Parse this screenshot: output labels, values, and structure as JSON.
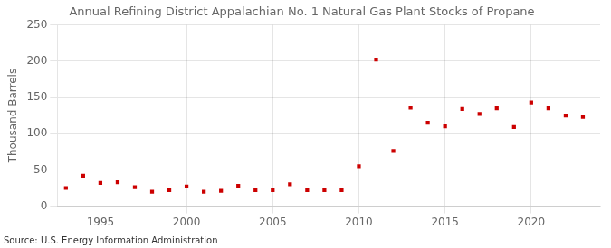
{
  "chart_data": {
    "type": "scatter",
    "title": "Annual Refining District Appalachian No. 1 Natural Gas Plant Stocks of Propane",
    "ylabel": "Thousand Barrels",
    "annotations": [
      "Source: U.S. Energy Information Administration"
    ],
    "x": [
      1993,
      1994,
      1995,
      1996,
      1997,
      1998,
      1999,
      2000,
      2001,
      2002,
      2003,
      2004,
      2005,
      2006,
      2007,
      2008,
      2009,
      2010,
      2011,
      2012,
      2013,
      2014,
      2015,
      2016,
      2017,
      2018,
      2019,
      2020,
      2021,
      2022,
      2023
    ],
    "values": [
      25,
      42,
      32,
      33,
      26,
      20,
      22,
      27,
      20,
      21,
      28,
      22,
      22,
      30,
      22,
      22,
      22,
      55,
      202,
      76,
      136,
      115,
      110,
      134,
      127,
      135,
      109,
      143,
      135,
      125,
      123
    ],
    "color": "#cc0000",
    "marker": "square",
    "xlim": [
      1992.5,
      2024
    ],
    "xticks": [
      1995,
      2000,
      2005,
      2010,
      2015,
      2020
    ],
    "ylim": [
      0,
      250
    ],
    "yticks": [
      0,
      50,
      100,
      150,
      200,
      250
    ],
    "grid": true
  }
}
